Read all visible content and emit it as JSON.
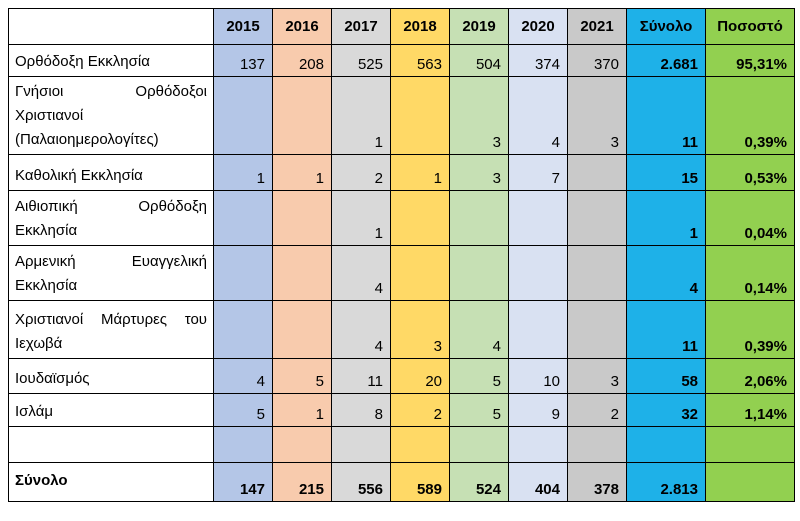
{
  "columns": [
    "",
    "2015",
    "2016",
    "2017",
    "2018",
    "2019",
    "2020",
    "2021",
    "Σύνολο",
    "Ποσοστό"
  ],
  "column_colors": [
    "#ffffff",
    "#b4c6e7",
    "#f8cbad",
    "#d9d9d9",
    "#ffd966",
    "#c6e0b4",
    "#d9e1f2",
    "#c9c9c9",
    "#1eb1e8",
    "#92d050"
  ],
  "rows": [
    {
      "label": "Ορθόδοξη Εκκλησία",
      "values": [
        "137",
        "208",
        "525",
        "563",
        "504",
        "374",
        "370"
      ],
      "total": "2.681",
      "percent": "95,31%"
    },
    {
      "label": "Γνήσιοι Ορθόδοξοι Χριστιανοί (Παλαιοημερολογίτες)",
      "values": [
        "",
        "",
        "1",
        "",
        "3",
        "4",
        "3"
      ],
      "total": "11",
      "percent": "0,39%"
    },
    {
      "label": "Καθολική Εκκλησία",
      "values": [
        "1",
        "1",
        "2",
        "1",
        "3",
        "7",
        ""
      ],
      "total": "15",
      "percent": "0,53%"
    },
    {
      "label": "Αιθιοπική Ορθόδοξη Εκκλησία",
      "values": [
        "",
        "",
        "1",
        "",
        "",
        "",
        ""
      ],
      "total": "1",
      "percent": "0,04%"
    },
    {
      "label": "Αρμενική Ευαγγελική Εκκλησία",
      "values": [
        "",
        "",
        "4",
        "",
        "",
        "",
        ""
      ],
      "total": "4",
      "percent": "0,14%"
    },
    {
      "label": "Χριστιανοί Μάρτυρες του Ιεχωβά",
      "values": [
        "",
        "",
        "4",
        "3",
        "4",
        "",
        ""
      ],
      "total": "11",
      "percent": "0,39%"
    },
    {
      "label": "Ιουδαϊσμός",
      "values": [
        "4",
        "5",
        "11",
        "20",
        "5",
        "10",
        "3"
      ],
      "total": "58",
      "percent": "2,06%"
    },
    {
      "label": "Ισλάμ",
      "values": [
        "5",
        "1",
        "8",
        "2",
        "5",
        "9",
        "2"
      ],
      "total": "32",
      "percent": "1,14%"
    },
    {
      "label": "",
      "values": [
        "",
        "",
        "",
        "",
        "",
        "",
        ""
      ],
      "total": "",
      "percent": ""
    },
    {
      "label": "Σύνολο",
      "values": [
        "147",
        "215",
        "556",
        "589",
        "524",
        "404",
        "378"
      ],
      "total": "2.813",
      "percent": ""
    }
  ]
}
